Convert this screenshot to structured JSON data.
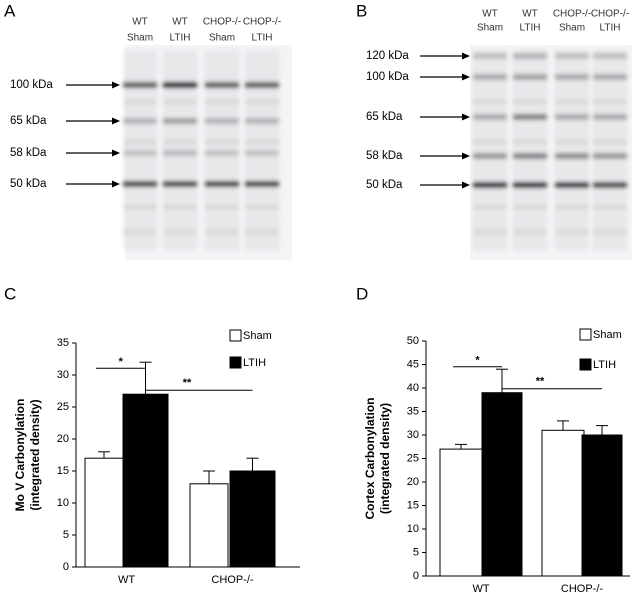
{
  "panels": [
    "A",
    "B",
    "C",
    "D"
  ],
  "blots": [
    {
      "lanes": [
        [
          "WT",
          "Sham"
        ],
        [
          "WT",
          "LTIH"
        ],
        [
          "CHOP-/-",
          "Sham"
        ],
        [
          "CHOP-/-",
          "LTIH"
        ]
      ],
      "markers": [
        "100 kDa",
        "65 kDa",
        "58 kDa",
        "50 kDa"
      ]
    },
    {
      "lanes": [
        [
          "WT",
          "Sham"
        ],
        [
          "WT",
          "LTIH"
        ],
        [
          "CHOP-/-",
          "Sham"
        ],
        [
          "CHOP-/-",
          "LTIH"
        ]
      ],
      "markers": [
        "120 kDa",
        "100 kDa",
        "65 kDa",
        "58 kDa",
        "50 kDa"
      ]
    }
  ],
  "chart_data": [
    {
      "type": "bar",
      "y_label": [
        "Mo V Carbonylation",
        "(integrated density)"
      ],
      "categories": [
        "WT",
        "CHOP-/-"
      ],
      "series": [
        {
          "name": "Sham",
          "color": "#ffffff",
          "values": [
            17,
            13
          ],
          "errors": [
            1,
            2
          ]
        },
        {
          "name": "LTIH",
          "color": "#000000",
          "values": [
            27,
            15
          ],
          "errors": [
            5,
            2
          ]
        }
      ],
      "annotations": [
        "*",
        "**"
      ],
      "ylim": [
        0,
        35
      ],
      "yticks": [
        0,
        5,
        10,
        15,
        20,
        25,
        30,
        35
      ],
      "legend": "upper right"
    },
    {
      "type": "bar",
      "y_label": [
        "Cortex Carbonylation",
        "(integrated density)"
      ],
      "categories": [
        "WT",
        "CHOP-/-"
      ],
      "series": [
        {
          "name": "Sham",
          "color": "#ffffff",
          "values": [
            27,
            31
          ],
          "errors": [
            1,
            2
          ]
        },
        {
          "name": "LTIH",
          "color": "#000000",
          "values": [
            39,
            30
          ],
          "errors": [
            5,
            2
          ]
        }
      ],
      "annotations": [
        "*",
        "**"
      ],
      "ylim": [
        0,
        50
      ],
      "yticks": [
        0,
        5,
        10,
        15,
        20,
        25,
        30,
        35,
        40,
        45,
        50
      ],
      "legend": "upper right"
    }
  ]
}
